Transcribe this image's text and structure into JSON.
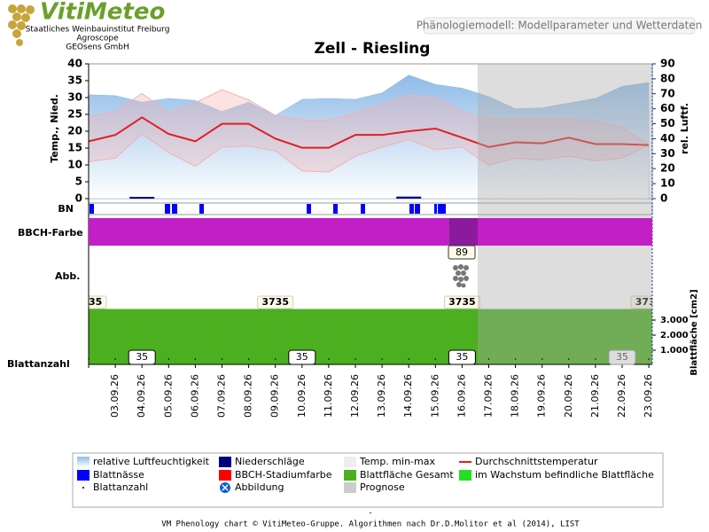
{
  "header": {
    "logo": "VitiMeteo",
    "org_lines": [
      "Staatliches Weinbauinstitut Freiburg",
      "Agroscope",
      "GEOsens GmbH"
    ],
    "button": "Phänologiemodell: Modellparameter und Wetterdaten"
  },
  "chart_data": {
    "type": "line",
    "title": "Zell - Riesling",
    "categories": [
      null,
      "03.09.26",
      "04.09.26",
      "05.09.26",
      "06.09.26",
      "07.09.26",
      "08.09.26",
      "09.09.26",
      "10.09.26",
      "11.09.26",
      "12.09.26",
      "13.09.26",
      "14.09.26",
      "15.09.26",
      "16.09.26",
      "17.09.26",
      "18.09.26",
      "19.09.26",
      "20.09.26",
      "21.09.26",
      "22.09.26",
      "23.09.26"
    ],
    "ylabel": "Temp., Nied.",
    "y2label": "rel. Luftf.",
    "ylim": [
      0,
      40
    ],
    "yticks": [
      0,
      5,
      10,
      15,
      20,
      25,
      30,
      35,
      40
    ],
    "y2lim": [
      0,
      90
    ],
    "y2ticks": [
      0,
      10,
      20,
      30,
      40,
      50,
      60,
      70,
      80,
      90
    ],
    "series": [
      {
        "name": "relative Luftfeuchtigkeit",
        "color": "#8fbbe8",
        "axis": "y2",
        "values": [
          69.4,
          68.8,
          64.4,
          66.9,
          65.6,
          58.1,
          64.4,
          55.6,
          66.3,
          66.9,
          66.3,
          70.6,
          82.5,
          76.3,
          73.8,
          68.1,
          60.0,
          60.6,
          63.8,
          66.9,
          75.0,
          77.5
        ]
      },
      {
        "name": "Niederschläge",
        "color": "#000080",
        "values": [
          0,
          0,
          0.5,
          0,
          0,
          0,
          0,
          0,
          0,
          0,
          0,
          0,
          0.6,
          0,
          0,
          0,
          0,
          0,
          0,
          0,
          0,
          0
        ]
      },
      {
        "name": "Temp. min-max",
        "color": "#f4b0b0",
        "low": [
          11.0,
          12.0,
          19.2,
          13.7,
          9.6,
          15.3,
          15.6,
          14.2,
          8.2,
          7.9,
          12.6,
          15.3,
          17.5,
          14.5,
          15.3,
          9.9,
          12.0,
          11.5,
          12.6,
          11.2,
          12.0,
          15.9
        ],
        "high": [
          24.4,
          25.8,
          31.2,
          25.5,
          28.5,
          32.3,
          29.3,
          24.7,
          23.3,
          23.3,
          25.5,
          28.0,
          30.7,
          30.1,
          25.8,
          23.6,
          23.6,
          23.8,
          23.6,
          23.0,
          21.1,
          15.9
        ]
      },
      {
        "name": "Durchschnittstemperatur",
        "color": "#e02020",
        "values": [
          17.0,
          18.9,
          24.1,
          19.2,
          17.0,
          22.2,
          22.2,
          17.8,
          15.1,
          15.1,
          18.9,
          18.9,
          20.0,
          20.8,
          18.1,
          15.3,
          16.7,
          16.4,
          18.1,
          16.2,
          16.2,
          15.9
        ]
      }
    ],
    "strip_labels": {
      "bn": "BN",
      "bbch": "BBCH-Farbe",
      "abb": "Abb.",
      "leaf_count": "Blattanzahl"
    },
    "bbch": {
      "value": 89,
      "color": "#c21fc6",
      "current_color": "#8b1a9c"
    },
    "leaf_area": {
      "label": "Blattfläche [cm2]",
      "color": "#4caf1f",
      "ylim": [
        0,
        3800
      ],
      "yticks": [
        {
          "value": 1000,
          "label": "1.000"
        },
        {
          "value": 2000,
          "label": "2.000"
        },
        {
          "value": 3000,
          "label": "3.000"
        }
      ],
      "values": [
        3735,
        3735,
        3735,
        3735,
        3735,
        3735,
        3735,
        3735,
        3735,
        3735,
        3735,
        3735,
        3735,
        3735,
        3735,
        3735,
        3735,
        3735,
        3735,
        3735,
        3735,
        3735
      ]
    },
    "leaf_count": [
      35,
      35,
      35,
      35,
      35,
      35,
      35,
      35,
      35,
      35,
      35,
      35,
      35,
      35,
      35,
      35,
      35,
      35,
      35,
      35,
      35,
      35
    ],
    "legend_extra": [
      {
        "label": "Blattnässe",
        "color": "#0000ff"
      },
      {
        "label": "BBCH-Stadiumfarbe",
        "color": "#ff0000"
      },
      {
        "label": "Blattfläche Gesamt",
        "color": "#4caf1f"
      },
      {
        "label": "im Wachstum befindliche Blattfläche",
        "color": "#22e022"
      },
      {
        "label": "Blattanzahl",
        "color": "#000000"
      },
      {
        "label": "Abbildung",
        "color": "#1060d0"
      },
      {
        "label": "Prognose",
        "color": "#cccccc"
      }
    ]
  },
  "footer": {
    "dash": "-",
    "text": "VM Phenology chart © VitiMeteo-Gruppe. Algorithmen nach Dr.D.Molitor et al (2014), LIST"
  }
}
